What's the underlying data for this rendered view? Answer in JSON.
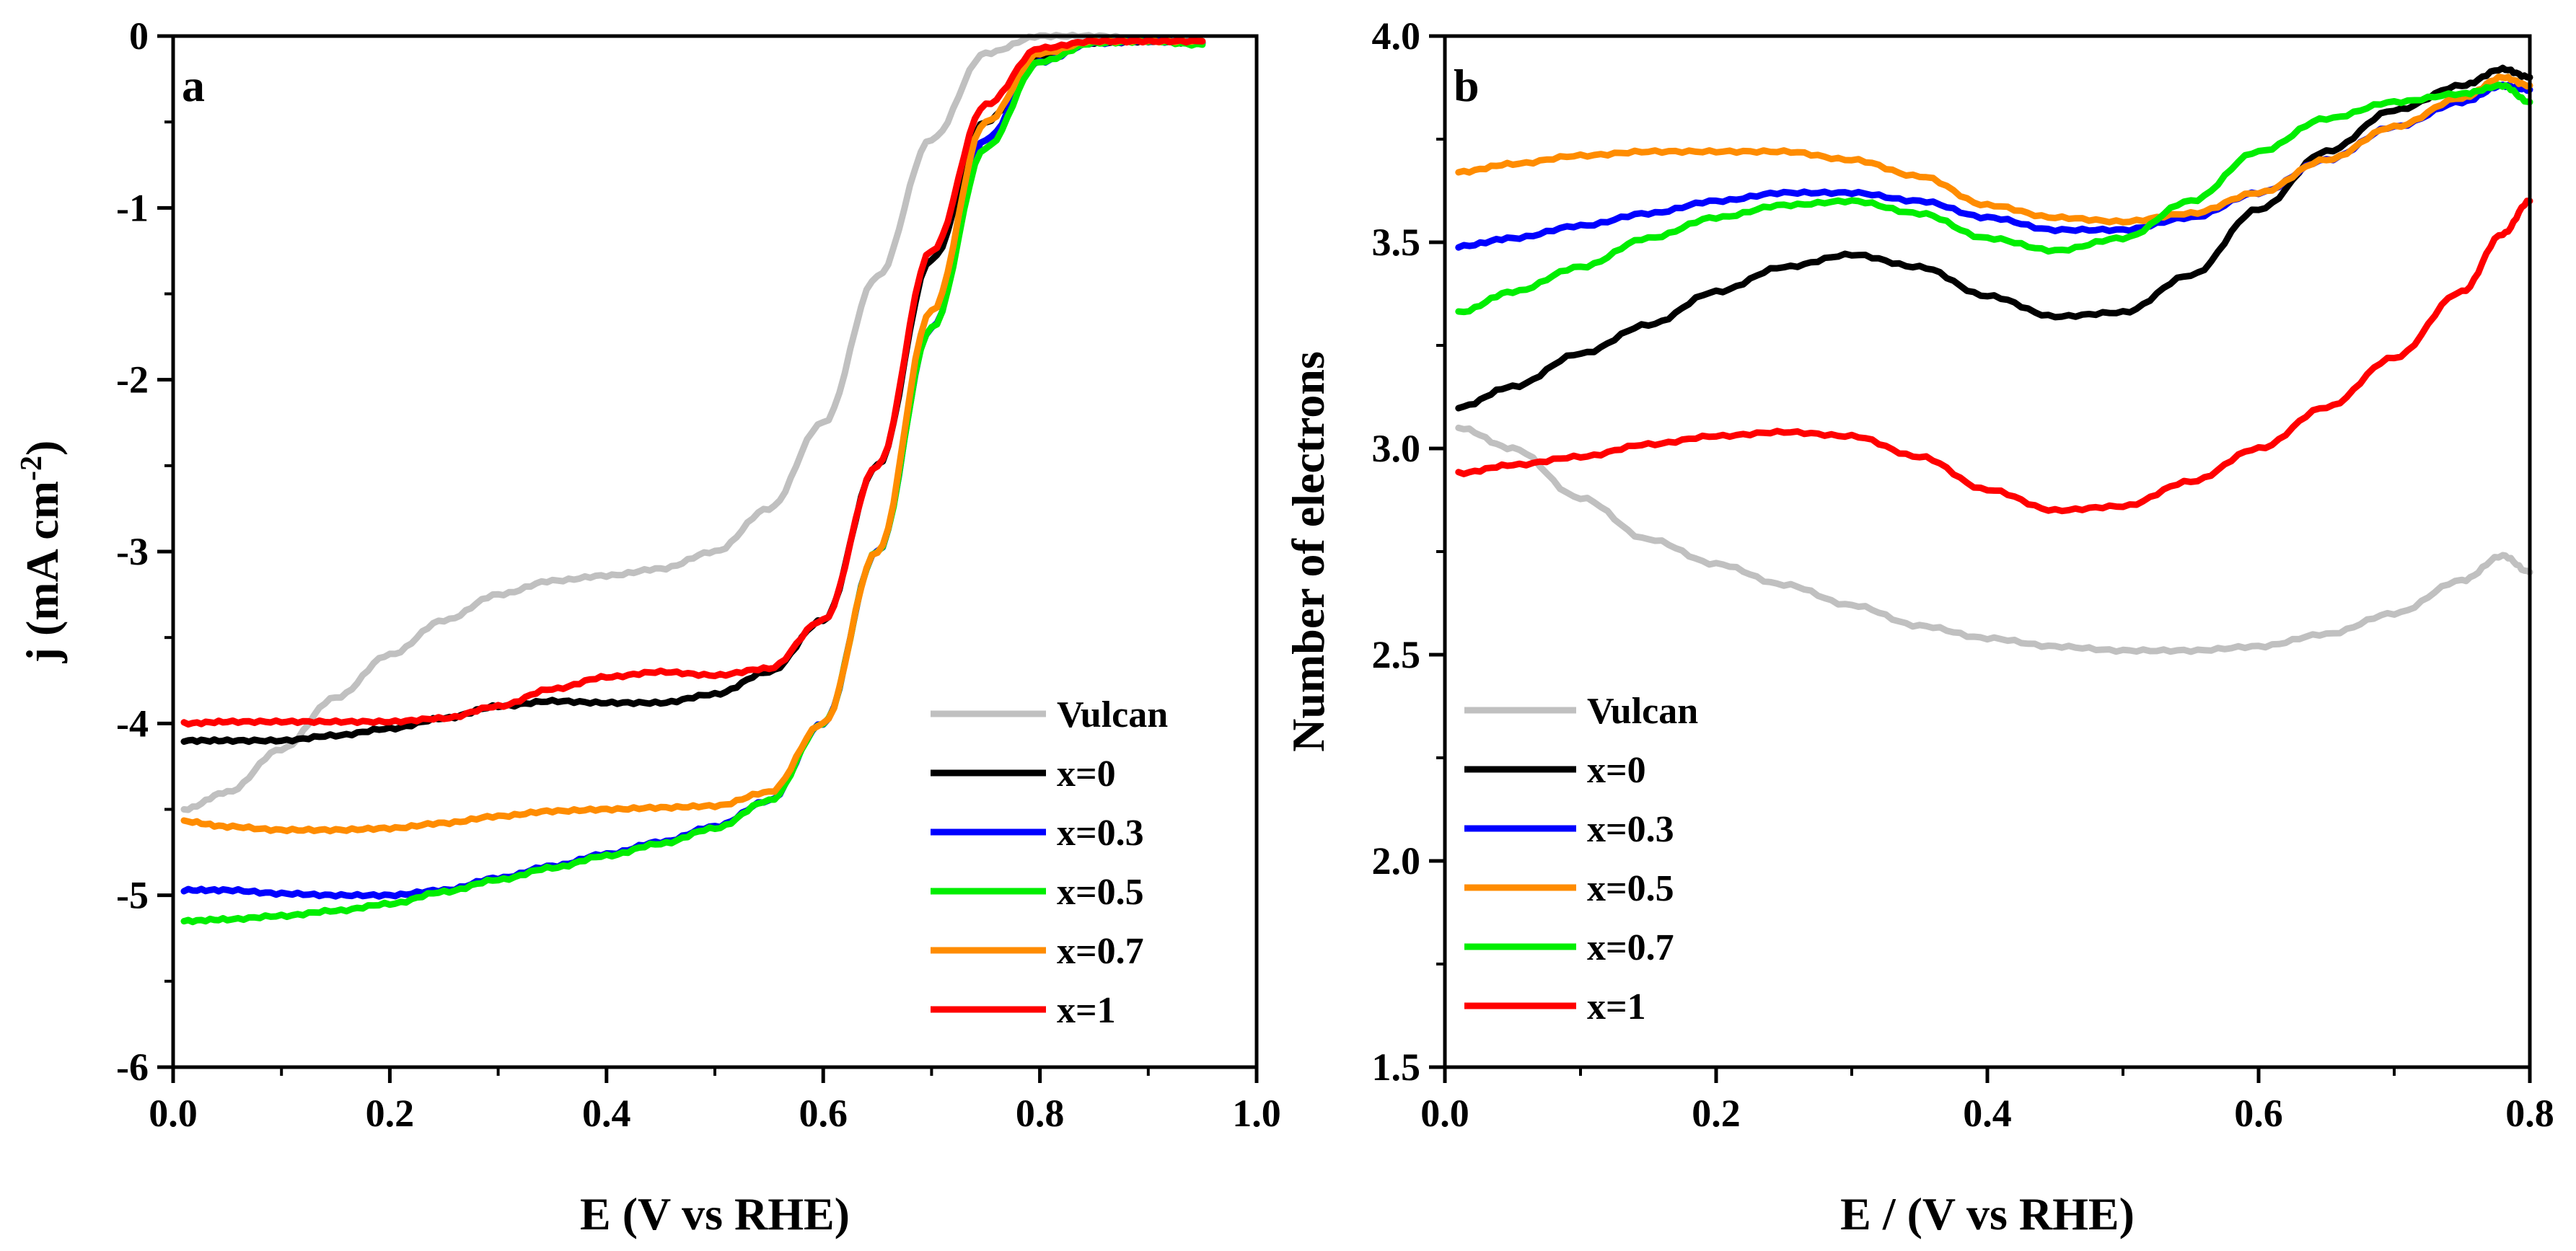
{
  "chart_data": [
    {
      "id": "a",
      "type": "line",
      "panel_label": "a",
      "xlabel": "E (V vs RHE)",
      "ylabel_main": "j (mA cm",
      "ylabel_sup": "-2",
      "ylabel_close": ")",
      "xlim": [
        0.0,
        1.0
      ],
      "ylim": [
        -6,
        0
      ],
      "xticks": [
        0.0,
        0.2,
        0.4,
        0.6,
        0.8,
        1.0
      ],
      "xtick_labels": [
        "0.0",
        "0.2",
        "0.4",
        "0.6",
        "0.8",
        "1.0"
      ],
      "yticks": [
        0,
        -1,
        -2,
        -3,
        -4,
        -5,
        -6
      ],
      "ytick_labels": [
        "0",
        "-1",
        "-2",
        "-3",
        "-4",
        "-5",
        "-6"
      ],
      "legend_position": "bottom-right",
      "series": [
        {
          "name": "Vulcan",
          "color": "#c0c0c0",
          "x": [
            0.01,
            0.05,
            0.1,
            0.15,
            0.2,
            0.25,
            0.3,
            0.35,
            0.4,
            0.45,
            0.5,
            0.55,
            0.6,
            0.65,
            0.7,
            0.75,
            0.8,
            0.85,
            0.9,
            0.95
          ],
          "y": [
            -4.5,
            -4.4,
            -4.15,
            -3.85,
            -3.6,
            -3.4,
            -3.25,
            -3.17,
            -3.14,
            -3.1,
            -3.0,
            -2.75,
            -2.25,
            -1.4,
            -0.6,
            -0.1,
            0.0,
            0.0,
            -0.02,
            -0.03
          ]
        },
        {
          "name": "x=0",
          "color": "#000000",
          "x": [
            0.01,
            0.05,
            0.1,
            0.15,
            0.2,
            0.25,
            0.3,
            0.35,
            0.4,
            0.45,
            0.5,
            0.55,
            0.6,
            0.65,
            0.7,
            0.75,
            0.8,
            0.85,
            0.9,
            0.95
          ],
          "y": [
            -4.1,
            -4.1,
            -4.1,
            -4.07,
            -4.03,
            -3.97,
            -3.9,
            -3.87,
            -3.88,
            -3.88,
            -3.83,
            -3.7,
            -3.4,
            -2.5,
            -1.3,
            -0.5,
            -0.12,
            -0.04,
            -0.03,
            -0.04
          ]
        },
        {
          "name": "x=0.3",
          "color": "#0000ff",
          "x": [
            0.01,
            0.05,
            0.1,
            0.15,
            0.2,
            0.25,
            0.3,
            0.35,
            0.4,
            0.45,
            0.5,
            0.55,
            0.6,
            0.65,
            0.7,
            0.75,
            0.8,
            0.85,
            0.9,
            0.95
          ],
          "y": [
            -4.97,
            -4.97,
            -4.99,
            -5.0,
            -5.0,
            -4.97,
            -4.9,
            -4.83,
            -4.76,
            -4.69,
            -4.6,
            -4.45,
            -4.0,
            -3.0,
            -1.7,
            -0.6,
            -0.15,
            -0.04,
            -0.03,
            -0.04
          ]
        },
        {
          "name": "x=0.5",
          "color": "#00ee00",
          "x": [
            0.01,
            0.05,
            0.1,
            0.15,
            0.2,
            0.25,
            0.3,
            0.35,
            0.4,
            0.45,
            0.5,
            0.55,
            0.6,
            0.65,
            0.7,
            0.75,
            0.8,
            0.85,
            0.9,
            0.95
          ],
          "y": [
            -5.15,
            -5.14,
            -5.12,
            -5.09,
            -5.05,
            -4.98,
            -4.91,
            -4.84,
            -4.77,
            -4.7,
            -4.61,
            -4.45,
            -4.0,
            -3.0,
            -1.7,
            -0.65,
            -0.15,
            -0.04,
            -0.03,
            -0.05
          ]
        },
        {
          "name": "x=0.7",
          "color": "#ff8c00",
          "x": [
            0.01,
            0.05,
            0.1,
            0.15,
            0.2,
            0.25,
            0.3,
            0.35,
            0.4,
            0.45,
            0.5,
            0.55,
            0.6,
            0.65,
            0.7,
            0.75,
            0.8,
            0.85,
            0.9,
            0.95
          ],
          "y": [
            -4.57,
            -4.6,
            -4.62,
            -4.62,
            -4.61,
            -4.58,
            -4.54,
            -4.51,
            -4.5,
            -4.49,
            -4.48,
            -4.4,
            -4.0,
            -3.0,
            -1.6,
            -0.5,
            -0.1,
            -0.03,
            -0.03,
            -0.03
          ]
        },
        {
          "name": "x=1",
          "color": "#ff0000",
          "x": [
            0.01,
            0.05,
            0.1,
            0.15,
            0.2,
            0.25,
            0.3,
            0.35,
            0.4,
            0.45,
            0.5,
            0.55,
            0.6,
            0.65,
            0.7,
            0.75,
            0.8,
            0.85,
            0.9,
            0.95
          ],
          "y": [
            -4.0,
            -3.99,
            -3.99,
            -3.99,
            -3.99,
            -3.97,
            -3.9,
            -3.8,
            -3.73,
            -3.7,
            -3.72,
            -3.68,
            -3.4,
            -2.5,
            -1.25,
            -0.4,
            -0.07,
            -0.03,
            -0.03,
            -0.03
          ]
        }
      ]
    },
    {
      "id": "b",
      "type": "line",
      "panel_label": "b",
      "xlabel": "E / (V vs RHE)",
      "ylabel": "Number of electrons",
      "xlim": [
        0.0,
        0.8
      ],
      "ylim": [
        1.5,
        4.0
      ],
      "xticks": [
        0.0,
        0.2,
        0.4,
        0.6,
        0.8
      ],
      "xtick_labels": [
        "0.0",
        "0.2",
        "0.4",
        "0.6",
        "0.8"
      ],
      "yticks": [
        1.5,
        2.0,
        2.5,
        3.0,
        3.5,
        4.0
      ],
      "ytick_labels": [
        "1.5",
        "2.0",
        "2.5",
        "3.0",
        "3.5",
        "4.0"
      ],
      "legend_position": "bottom-left",
      "series": [
        {
          "name": "Vulcan",
          "color": "#c0c0c0",
          "x": [
            0.01,
            0.05,
            0.1,
            0.15,
            0.2,
            0.25,
            0.3,
            0.35,
            0.4,
            0.45,
            0.5,
            0.55,
            0.6,
            0.65,
            0.7,
            0.75,
            0.78,
            0.8
          ],
          "y": [
            3.05,
            3.0,
            2.88,
            2.78,
            2.72,
            2.67,
            2.62,
            2.57,
            2.54,
            2.52,
            2.51,
            2.51,
            2.52,
            2.55,
            2.6,
            2.68,
            2.74,
            2.7
          ]
        },
        {
          "name": "x=0",
          "color": "#000000",
          "x": [
            0.01,
            0.05,
            0.1,
            0.15,
            0.2,
            0.25,
            0.3,
            0.35,
            0.4,
            0.45,
            0.5,
            0.55,
            0.6,
            0.65,
            0.7,
            0.75,
            0.78,
            0.8
          ],
          "y": [
            3.1,
            3.15,
            3.23,
            3.3,
            3.38,
            3.44,
            3.47,
            3.44,
            3.37,
            3.32,
            3.33,
            3.42,
            3.58,
            3.72,
            3.82,
            3.88,
            3.92,
            3.9
          ]
        },
        {
          "name": "x=0.3",
          "color": "#0000ff",
          "x": [
            0.01,
            0.05,
            0.1,
            0.15,
            0.2,
            0.25,
            0.3,
            0.35,
            0.4,
            0.45,
            0.5,
            0.55,
            0.6,
            0.65,
            0.7,
            0.75,
            0.78,
            0.8
          ],
          "y": [
            3.49,
            3.51,
            3.54,
            3.57,
            3.6,
            3.62,
            3.62,
            3.6,
            3.56,
            3.53,
            3.53,
            3.56,
            3.62,
            3.7,
            3.78,
            3.84,
            3.88,
            3.87
          ]
        },
        {
          "name": "x=0.5",
          "color": "#ff8c00",
          "x": [
            0.01,
            0.05,
            0.1,
            0.15,
            0.2,
            0.25,
            0.3,
            0.35,
            0.4,
            0.45,
            0.5,
            0.55,
            0.6,
            0.65,
            0.7,
            0.75,
            0.78,
            0.8
          ],
          "y": [
            3.67,
            3.69,
            3.71,
            3.72,
            3.72,
            3.72,
            3.7,
            3.66,
            3.59,
            3.56,
            3.55,
            3.57,
            3.62,
            3.7,
            3.78,
            3.85,
            3.9,
            3.88
          ]
        },
        {
          "name": "x=0.7",
          "color": "#00ee00",
          "x": [
            0.01,
            0.05,
            0.1,
            0.15,
            0.2,
            0.25,
            0.3,
            0.35,
            0.4,
            0.45,
            0.5,
            0.55,
            0.6,
            0.65,
            0.7,
            0.75,
            0.78,
            0.8
          ],
          "y": [
            3.33,
            3.38,
            3.44,
            3.51,
            3.56,
            3.59,
            3.6,
            3.57,
            3.51,
            3.48,
            3.51,
            3.6,
            3.72,
            3.8,
            3.84,
            3.86,
            3.88,
            3.84
          ]
        },
        {
          "name": "x=1",
          "color": "#ff0000",
          "x": [
            0.01,
            0.05,
            0.1,
            0.15,
            0.2,
            0.25,
            0.3,
            0.35,
            0.4,
            0.45,
            0.5,
            0.55,
            0.6,
            0.65,
            0.7,
            0.75,
            0.78,
            0.8
          ],
          "y": [
            2.94,
            2.96,
            2.98,
            3.01,
            3.03,
            3.04,
            3.03,
            2.98,
            2.9,
            2.85,
            2.86,
            2.92,
            3.0,
            3.1,
            3.22,
            3.38,
            3.52,
            3.6
          ]
        }
      ]
    }
  ]
}
